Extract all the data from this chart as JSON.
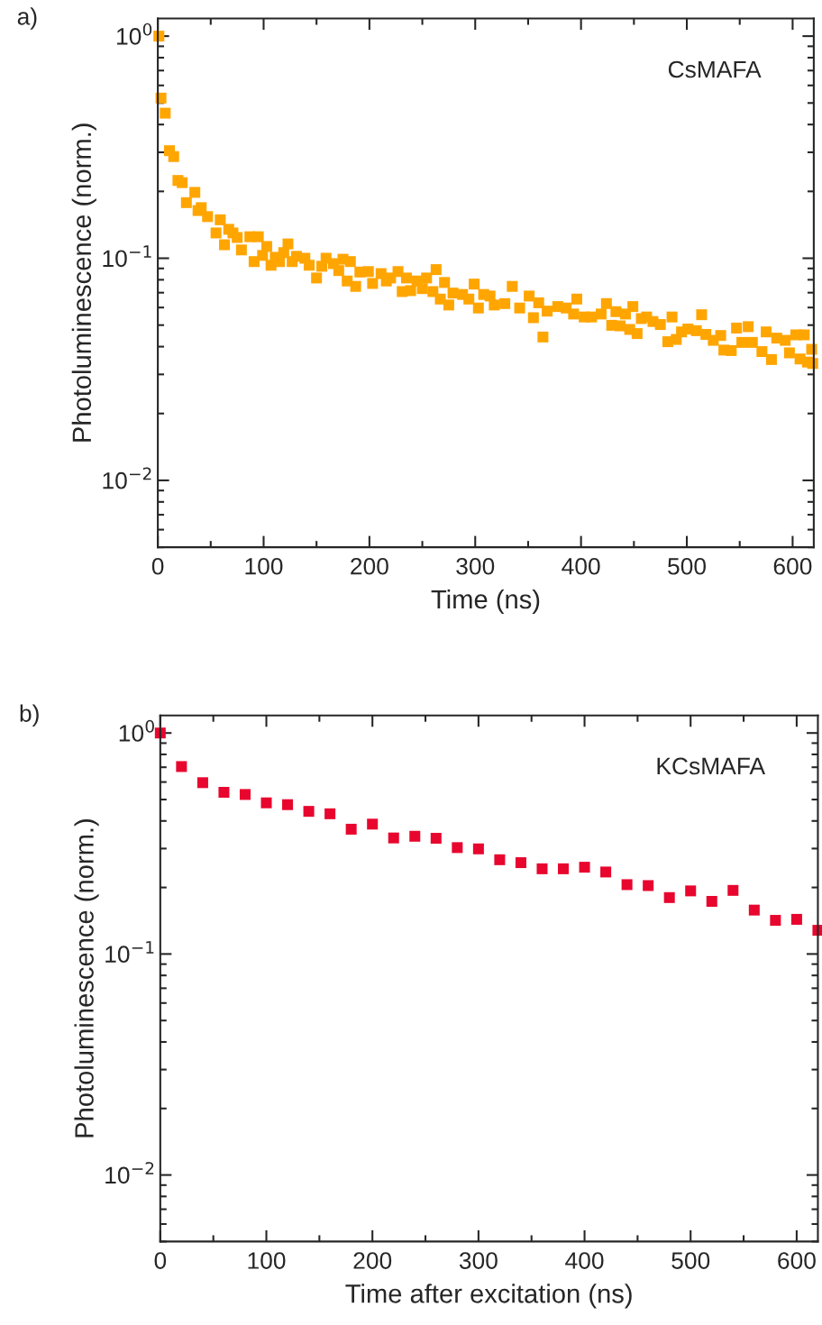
{
  "chart_data": [
    {
      "type": "scatter",
      "xlabel": "Time (ns)",
      "ylabel": "Photoluminescence (norm.)",
      "annotations": [
        "a)",
        "CsMAFA"
      ],
      "log": "y",
      "marker": "square",
      "grid": false,
      "xlim": [
        0,
        620
      ],
      "ylim": [
        0.005,
        1.2
      ],
      "xticks": [
        0,
        100,
        200,
        300,
        400,
        500,
        600
      ],
      "yticks": [
        {
          "value": 1,
          "label": "10$^{0}$"
        },
        {
          "value": 0.1,
          "label": "10$^{−1}$"
        },
        {
          "value": 0.01,
          "label": "10$^{−2}$"
        }
      ],
      "series": [
        {
          "color": "#ffa500",
          "x": [
            1,
            3,
            7,
            11,
            15,
            19,
            23,
            27,
            35,
            38,
            41,
            47,
            55,
            59,
            63,
            67,
            71,
            75,
            79,
            87,
            91,
            95,
            99,
            103,
            107,
            111,
            115,
            119,
            123,
            127,
            131,
            139,
            143,
            150,
            155,
            159,
            166,
            171,
            175,
            179,
            182,
            187,
            191,
            199,
            203,
            211,
            216,
            220,
            227,
            231,
            235,
            239,
            245,
            250,
            254,
            260,
            263,
            267,
            271,
            275,
            279,
            288,
            294,
            299,
            303,
            308,
            314,
            318,
            328,
            335,
            342,
            351,
            355,
            360,
            364,
            368,
            378,
            386,
            393,
            396,
            403,
            410,
            419,
            424,
            429,
            433,
            437,
            442,
            446,
            449,
            453,
            457,
            462,
            468,
            475,
            482,
            486,
            490,
            495,
            501,
            509,
            514,
            518,
            525,
            532,
            535,
            542,
            547,
            552,
            558,
            562,
            571,
            575,
            580,
            585,
            593,
            597,
            603,
            607,
            611,
            614,
            618,
            619
          ],
          "values": [
            1.0,
            0.526,
            0.45,
            0.305,
            0.287,
            0.224,
            0.219,
            0.178,
            0.198,
            0.164,
            0.169,
            0.154,
            0.13,
            0.149,
            0.115,
            0.135,
            0.13,
            0.124,
            0.109,
            0.125,
            0.0966,
            0.125,
            0.103,
            0.113,
            0.093,
            0.101,
            0.0966,
            0.106,
            0.116,
            0.0966,
            0.102,
            0.1,
            0.093,
            0.0815,
            0.092,
            0.1,
            0.0946,
            0.088,
            0.099,
            0.079,
            0.0966,
            0.0747,
            0.0867,
            0.0871,
            0.077,
            0.0853,
            0.079,
            0.0815,
            0.0871,
            0.0708,
            0.0815,
            0.0715,
            0.079,
            0.073,
            0.0815,
            0.0708,
            0.0889,
            0.0655,
            0.0778,
            0.0616,
            0.0697,
            0.0687,
            0.0655,
            0.0765,
            0.0597,
            0.0687,
            0.0676,
            0.0616,
            0.0625,
            0.0747,
            0.0597,
            0.0676,
            0.054,
            0.063,
            0.0442,
            0.0578,
            0.0606,
            0.0597,
            0.0561,
            0.0655,
            0.0544,
            0.0544,
            0.0561,
            0.0625,
            0.0499,
            0.0575,
            0.0496,
            0.0561,
            0.0478,
            0.0606,
            0.0458,
            0.0535,
            0.0544,
            0.0519,
            0.0503,
            0.0421,
            0.0544,
            0.0431,
            0.0466,
            0.048,
            0.0472,
            0.0557,
            0.0454,
            0.0427,
            0.0449,
            0.0386,
            0.0384,
            0.0485,
            0.0418,
            0.0492,
            0.0418,
            0.038,
            0.0466,
            0.035,
            0.0437,
            0.0427,
            0.0375,
            0.0452,
            0.0352,
            0.0452,
            0.0341,
            0.0389,
            0.0336
          ]
        }
      ]
    },
    {
      "type": "scatter",
      "xlabel": "Time after excitation (ns)",
      "ylabel": "Photoluminescence (norm.)",
      "annotations": [
        "b)",
        "KCsMAFA"
      ],
      "log": "y",
      "marker": "square",
      "grid": false,
      "xlim": [
        0,
        620
      ],
      "ylim": [
        0.005,
        1.2
      ],
      "xticks": [
        0,
        100,
        200,
        300,
        400,
        500,
        600
      ],
      "yticks": [
        {
          "value": 1,
          "label": "10$^{0}$"
        },
        {
          "value": 0.1,
          "label": "10$^{−1}$"
        },
        {
          "value": 0.01,
          "label": "10$^{−2}$"
        }
      ],
      "series": [
        {
          "color": "#e8062e",
          "x": [
            0,
            20,
            40,
            60,
            80,
            100,
            120,
            140,
            160,
            180,
            200,
            220,
            240,
            260,
            280,
            300,
            320,
            340,
            360,
            380,
            400,
            420,
            440,
            460,
            480,
            500,
            520,
            540,
            560,
            580,
            600,
            620
          ],
          "values": [
            1.0,
            0.705,
            0.596,
            0.539,
            0.527,
            0.483,
            0.474,
            0.442,
            0.431,
            0.367,
            0.387,
            0.335,
            0.341,
            0.334,
            0.303,
            0.299,
            0.267,
            0.259,
            0.243,
            0.243,
            0.247,
            0.235,
            0.206,
            0.204,
            0.18,
            0.193,
            0.173,
            0.194,
            0.158,
            0.142,
            0.1435,
            0.128
          ]
        }
      ]
    }
  ]
}
